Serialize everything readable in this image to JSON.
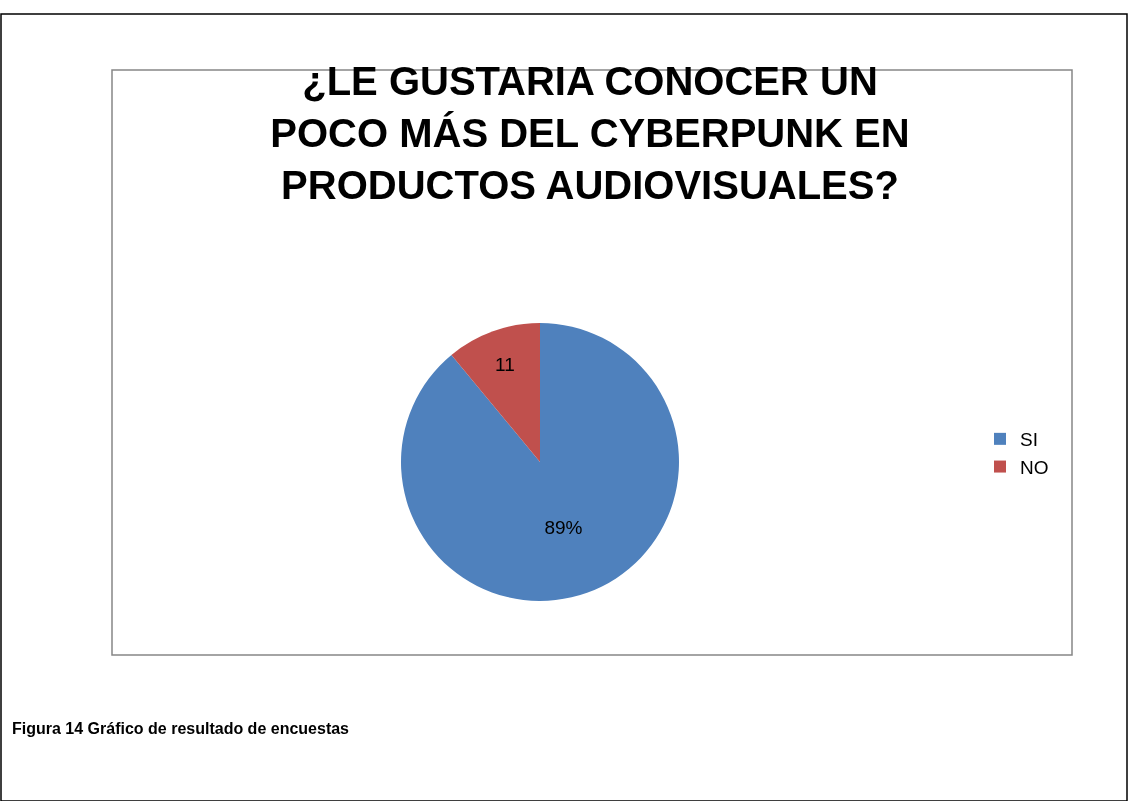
{
  "chart_data": {
    "type": "pie",
    "title": "¿LE GUSTARIA CONOCER UN POCO MÁS DEL CYBERPUNK EN PRODUCTOS AUDIOVISUALES?",
    "categories": [
      "SI",
      "NO"
    ],
    "values": [
      89,
      11
    ],
    "colors": [
      "#4f81bd",
      "#c0504d"
    ],
    "value_labels": [
      "89%",
      "11"
    ],
    "legend": "right",
    "annotations": [
      "Figura 14 Gráfico de resultado de encuestas"
    ]
  }
}
